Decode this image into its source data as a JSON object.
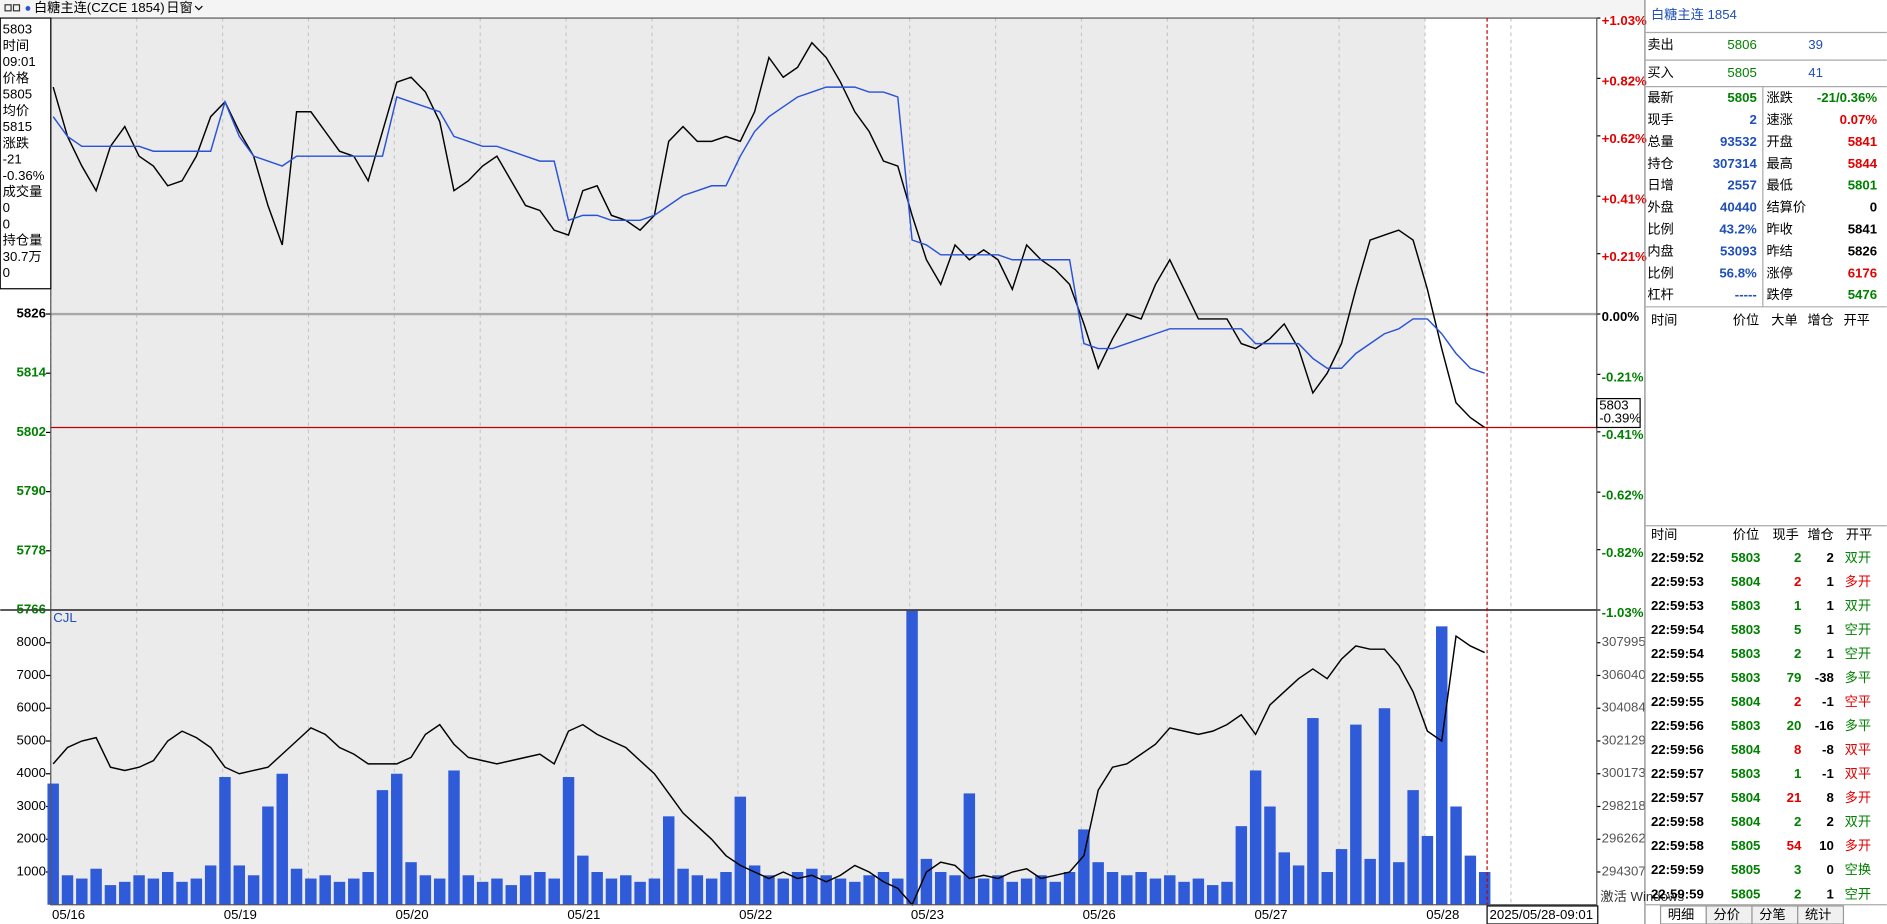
{
  "toolbar": {
    "symbol": "白糖主连(CZCE 1854)",
    "period": "日窗"
  },
  "info_box": [
    5803,
    "时间",
    "09:01",
    "价格",
    5805,
    "均价",
    5815,
    "涨跌",
    -21,
    "-0.36%",
    "成交量",
    0,
    0,
    "持仓量",
    "30.7万",
    0
  ],
  "cursor": {
    "price": 5803,
    "pct": "-0.39%",
    "time": "2025/05/28-09:01"
  },
  "chart_data": [
    {
      "type": "line",
      "categories": [
        "05/16",
        null,
        null,
        null,
        null,
        null,
        null,
        null,
        null,
        null,
        null,
        null,
        "05/19",
        null,
        null,
        null,
        null,
        null,
        null,
        null,
        null,
        null,
        null,
        null,
        "05/20",
        null,
        null,
        null,
        null,
        null,
        null,
        null,
        null,
        null,
        null,
        null,
        "05/21",
        null,
        null,
        null,
        null,
        null,
        null,
        null,
        null,
        null,
        null,
        null,
        "05/22",
        null,
        null,
        null,
        null,
        null,
        null,
        null,
        null,
        null,
        null,
        null,
        "05/23",
        null,
        null,
        null,
        null,
        null,
        null,
        null,
        null,
        null,
        null,
        null,
        "05/26",
        null,
        null,
        null,
        null,
        null,
        null,
        null,
        null,
        null,
        null,
        null,
        "05/27",
        null,
        null,
        null,
        null,
        null,
        null,
        null,
        null,
        null,
        null,
        null,
        "05/28",
        null,
        null,
        null,
        null
      ],
      "series": [
        {
          "color": "#000000",
          "values": [
            5872,
            5862,
            5856,
            5851,
            5860,
            5864,
            5858,
            5856,
            5852,
            5853,
            5858,
            5866,
            5869,
            5863,
            5858,
            5848,
            5840,
            5867,
            5867,
            5863,
            5859,
            5858,
            5853,
            5863,
            5873,
            5874,
            5871,
            5865,
            5851,
            5853,
            5856,
            5858,
            5853,
            5848,
            5847,
            5843,
            5842,
            5851,
            5852,
            5846,
            5845,
            5843,
            5846,
            5861,
            5864,
            5861,
            5861,
            5862,
            5861,
            5867,
            5878,
            5874,
            5876,
            5881,
            5878,
            5873,
            5867,
            5863,
            5857,
            5856,
            5846,
            5837,
            5832,
            5840,
            5837,
            5839,
            5837,
            5831,
            5840,
            5837,
            5835,
            5832,
            5824,
            5815,
            5821,
            5826,
            5825,
            5832,
            5837,
            5831,
            5825,
            5825,
            5825,
            5820,
            5819,
            5821,
            5824,
            5819,
            5810,
            5814,
            5820,
            5831,
            5841,
            5842,
            5843,
            5841,
            5831,
            5819,
            5808,
            5805,
            5803
          ]
        },
        {
          "color": "#2a52d6",
          "values": [
            5866,
            5862,
            5860,
            5860,
            5860,
            5860,
            5860,
            5859,
            5859,
            5859,
            5859,
            5859,
            5869,
            5862,
            5858,
            5857,
            5856,
            5858,
            5858,
            5858,
            5858,
            5858,
            5858,
            5858,
            5870,
            5869,
            5868,
            5867,
            5862,
            5861,
            5860,
            5860,
            5859,
            5858,
            5857,
            5857,
            5845,
            5846,
            5846,
            5845,
            5845,
            5845,
            5846,
            5848,
            5850,
            5851,
            5852,
            5852,
            5858,
            5863,
            5866,
            5868,
            5870,
            5871,
            5872,
            5872,
            5872,
            5871,
            5871,
            5870,
            5841,
            5840,
            5838,
            5838,
            5838,
            5838,
            5838,
            5837,
            5837,
            5837,
            5837,
            5837,
            5820,
            5819,
            5819,
            5820,
            5821,
            5822,
            5823,
            5823,
            5823,
            5823,
            5823,
            5823,
            5820,
            5820,
            5820,
            5820,
            5817,
            5815,
            5815,
            5818,
            5820,
            5822,
            5823,
            5825,
            5825,
            5822,
            5818,
            5815,
            5814
          ]
        }
      ],
      "ylim": [
        5766,
        5886
      ],
      "yticks": [
        5826,
        5814,
        5802,
        5790,
        5778,
        5766
      ],
      "y2lim": [
        -1.03,
        1.03
      ],
      "y2ticks": [
        {
          "value": 1.03,
          "label": "+1.03%"
        },
        {
          "value": 0.82,
          "label": "+0.82%"
        },
        {
          "value": 0.62,
          "label": "+0.62%"
        },
        {
          "value": 0.41,
          "label": "+0.41%"
        },
        {
          "value": 0.21,
          "label": "+0.21%"
        },
        {
          "value": 0,
          "label": "0.00%"
        },
        {
          "value": -0.21,
          "label": "-0.21%"
        },
        {
          "value": -0.41,
          "label": "-0.41%"
        },
        {
          "value": -0.62,
          "label": "-0.62%"
        },
        {
          "value": -0.82,
          "label": "-0.82%"
        },
        {
          "value": -1.03,
          "label": "-1.03%"
        }
      ]
    },
    {
      "type": "bar",
      "label": "CJL",
      "series": [
        {
          "color": "#2f5bd9",
          "values": [
            3700,
            900,
            800,
            1100,
            600,
            700,
            900,
            800,
            1000,
            700,
            800,
            1200,
            3900,
            1200,
            900,
            3000,
            4000,
            1100,
            800,
            900,
            700,
            800,
            1000,
            3500,
            4000,
            1300,
            900,
            800,
            4100,
            900,
            700,
            800,
            600,
            900,
            1000,
            800,
            3900,
            1500,
            1000,
            800,
            900,
            700,
            800,
            2700,
            1100,
            900,
            800,
            1000,
            3300,
            1200,
            900,
            800,
            1000,
            1100,
            900,
            800,
            700,
            900,
            1000,
            800,
            9000,
            1400,
            1000,
            900,
            3400,
            800,
            900,
            700,
            800,
            900,
            700,
            1000,
            2300,
            1300,
            1000,
            900,
            1000,
            800,
            900,
            700,
            800,
            600,
            700,
            2400,
            4100,
            3000,
            1600,
            1200,
            5700,
            1000,
            1700,
            5500,
            1400,
            6000,
            1300,
            3500,
            2100,
            8500,
            3000,
            1500,
            1000
          ]
        },
        {
          "color": "#000000",
          "axis": "y2",
          "values": [
            300760,
            301740,
            302130,
            302325,
            300565,
            300370,
            300565,
            300956,
            302130,
            302716,
            302325,
            301740,
            300565,
            300174,
            300370,
            300565,
            301347,
            302130,
            302912,
            302521,
            301740,
            301347,
            300760,
            300760,
            300760,
            301152,
            302521,
            303107,
            301934,
            301152,
            300956,
            300760,
            300956,
            301152,
            301347,
            300760,
            302716,
            303107,
            302521,
            302130,
            301740,
            300956,
            300174,
            299000,
            297827,
            297045,
            296262,
            295285,
            294698,
            294307,
            293916,
            294307,
            293916,
            294111,
            293720,
            294111,
            294698,
            294307,
            293720,
            293329,
            292351,
            294307,
            294893,
            294698,
            293916,
            294111,
            293916,
            294307,
            294502,
            293916,
            294111,
            294307,
            295285,
            299196,
            300565,
            300760,
            301347,
            301934,
            302912,
            302716,
            302521,
            302716,
            303107,
            303694,
            302521,
            304281,
            305063,
            305845,
            306432,
            305845,
            307019,
            307801,
            307605,
            307605,
            306628,
            305063,
            302716,
            302130,
            308388,
            307801,
            307410
          ]
        }
      ],
      "ylim": [
        0,
        9000
      ],
      "yticks": [
        8000,
        7000,
        6000,
        5000,
        4000,
        3000,
        2000,
        1000
      ],
      "y2lim": [
        292351,
        309950
      ],
      "y2ticks": [
        307995,
        306040,
        304084,
        302129,
        300173,
        298218,
        296262,
        294307
      ]
    }
  ],
  "panel": {
    "title": "白糖主连 1854",
    "ask": {
      "label": "卖出",
      "price": 5806,
      "volume": 39
    },
    "bid": {
      "label": "买入",
      "price": 5805,
      "volume": 41
    },
    "quote": [
      [
        "最新",
        5805,
        "涨跌",
        "-21/0.36%"
      ],
      [
        "现手",
        2,
        "速涨",
        "0.07%"
      ],
      [
        "总量",
        93532,
        "开盘",
        5841
      ],
      [
        "持仓",
        307314,
        "最高",
        5844
      ],
      [
        "日增",
        2557,
        "最低",
        5801
      ],
      [
        "外盘",
        40440,
        "结算价",
        0
      ],
      [
        "比例",
        "43.2%",
        "昨收",
        5841
      ],
      [
        "内盘",
        53093,
        "昨结",
        5826
      ],
      [
        "比例",
        "56.8%",
        "涨停",
        6176
      ],
      [
        "杠杆",
        "-----",
        "跌停",
        5476
      ]
    ],
    "big_header": [
      "时间",
      "价位",
      "大单",
      "增仓",
      "开平"
    ],
    "ticks_header": [
      "时间",
      "价位",
      "现手",
      "增仓",
      "开平"
    ],
    "ticks": [
      [
        "22:59:52",
        5803,
        2,
        2,
        "双开"
      ],
      [
        "22:59:53",
        5804,
        2,
        1,
        "多开"
      ],
      [
        "22:59:53",
        5803,
        1,
        1,
        "双开"
      ],
      [
        "22:59:54",
        5803,
        5,
        1,
        "空开"
      ],
      [
        "22:59:54",
        5803,
        2,
        1,
        "空开"
      ],
      [
        "22:59:55",
        5803,
        79,
        -38,
        "多平"
      ],
      [
        "22:59:55",
        5804,
        2,
        -1,
        "空平"
      ],
      [
        "22:59:56",
        5803,
        20,
        -16,
        "多平"
      ],
      [
        "22:59:56",
        5804,
        8,
        -8,
        "双平"
      ],
      [
        "22:59:57",
        5803,
        1,
        -1,
        "双平"
      ],
      [
        "22:59:57",
        5804,
        21,
        8,
        "多开"
      ],
      [
        "22:59:58",
        5804,
        2,
        2,
        "双开"
      ],
      [
        "22:59:58",
        5805,
        54,
        10,
        "多开"
      ],
      [
        "22:59:59",
        5805,
        3,
        0,
        "空换"
      ],
      [
        "22:59:59",
        5805,
        2,
        1,
        "空开"
      ]
    ],
    "tabs": [
      "明细",
      "分价",
      "分笔",
      "统计"
    ]
  },
  "watermark": "激活 Windows"
}
